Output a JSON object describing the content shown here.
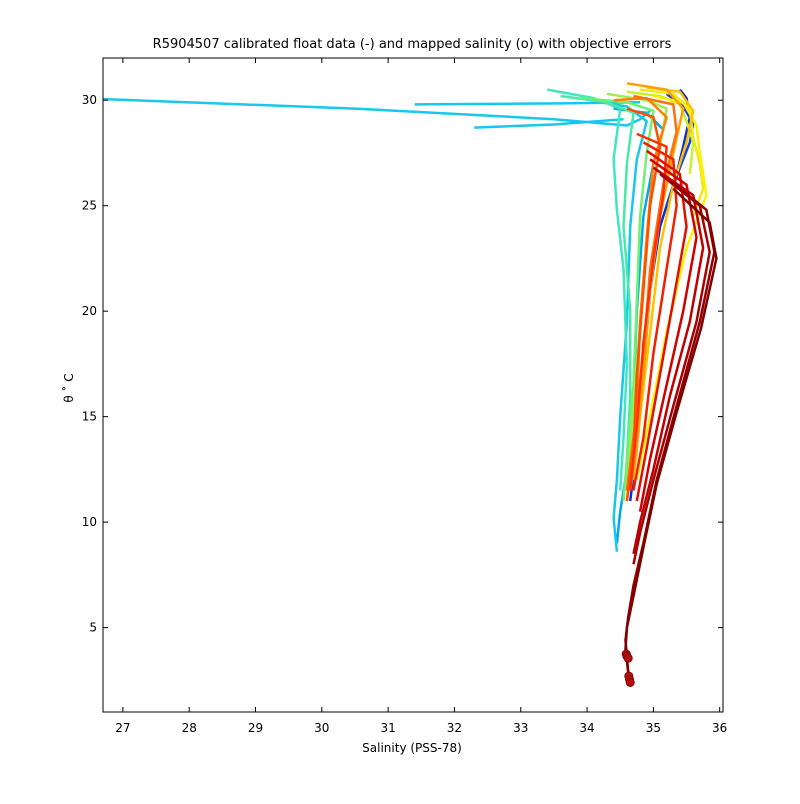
{
  "chart_data": {
    "type": "line",
    "title": "R5904507 calibrated float data (-) and mapped salinity (o) with objective errors",
    "xlabel": "Salinity (PSS-78)",
    "ylabel": "θ ˚ C",
    "xlim": [
      26.7,
      36.05
    ],
    "ylim": [
      1.0,
      32.0
    ],
    "xticks": [
      27,
      28,
      29,
      30,
      31,
      32,
      33,
      34,
      35,
      36
    ],
    "yticks": [
      5,
      10,
      15,
      20,
      25,
      30
    ],
    "grid": false,
    "legend": "none",
    "colormap": "jet",
    "series": [
      {
        "color": "#0a2fd0",
        "points": [
          [
            35.4,
            30.5
          ],
          [
            35.5,
            30.1
          ],
          [
            35.55,
            29.2
          ],
          [
            35.5,
            28.5
          ],
          [
            35.45,
            27.8
          ],
          [
            35.35,
            26.5
          ],
          [
            35.1,
            24.0
          ],
          [
            34.95,
            21.0
          ],
          [
            34.85,
            17.0
          ],
          [
            34.75,
            13.5
          ],
          [
            34.65,
            11.0
          ]
        ]
      },
      {
        "color": "#1540e6",
        "points": [
          [
            35.2,
            30.3
          ],
          [
            35.45,
            29.7
          ],
          [
            35.6,
            28.9
          ],
          [
            35.55,
            28.0
          ],
          [
            35.4,
            26.8
          ],
          [
            35.2,
            25.0
          ]
        ]
      },
      {
        "color": "#00a8f0",
        "points": [
          [
            34.4,
            29.6
          ],
          [
            34.9,
            29.4
          ],
          [
            35.15,
            28.6
          ],
          [
            35.0,
            27.0
          ],
          [
            34.85,
            24.5
          ],
          [
            34.75,
            20.0
          ],
          [
            34.7,
            16.0
          ],
          [
            34.6,
            12.5
          ],
          [
            34.5,
            10.5
          ],
          [
            34.45,
            9.0
          ]
        ]
      },
      {
        "color": "#18c8ec",
        "points": [
          [
            34.2,
            29.9
          ],
          [
            34.6,
            29.7
          ],
          [
            34.9,
            29.0
          ],
          [
            34.75,
            27.2
          ],
          [
            34.65,
            24.0
          ],
          [
            34.6,
            19.5
          ],
          [
            34.5,
            15.0
          ],
          [
            34.45,
            12.0
          ],
          [
            34.4,
            10.2
          ],
          [
            34.45,
            8.6
          ]
        ]
      },
      {
        "color": "#18c8ec",
        "points": [
          [
            26.7,
            30.05
          ],
          [
            30.5,
            29.6
          ],
          [
            33.5,
            29.1
          ],
          [
            34.6,
            28.8
          ],
          [
            34.8,
            29.1
          ],
          [
            34.95,
            29.5
          ]
        ]
      },
      {
        "color": "#18c8ec",
        "points": [
          [
            31.4,
            29.8
          ],
          [
            33.6,
            29.85
          ],
          [
            34.8,
            29.9
          ]
        ]
      },
      {
        "color": "#18c8ec",
        "points": [
          [
            32.3,
            28.7
          ],
          [
            33.5,
            28.85
          ],
          [
            34.55,
            29.1
          ]
        ]
      },
      {
        "color": "#40e6c0",
        "points": [
          [
            33.4,
            30.5
          ],
          [
            34.1,
            30.1
          ],
          [
            34.5,
            29.6
          ],
          [
            34.4,
            27.2
          ],
          [
            34.45,
            24.8
          ],
          [
            34.55,
            22.0
          ],
          [
            34.6,
            17.5
          ],
          [
            34.55,
            14.0
          ],
          [
            34.5,
            11.5
          ]
        ]
      },
      {
        "color": "#48e8a8",
        "points": [
          [
            33.6,
            30.2
          ],
          [
            34.3,
            29.9
          ],
          [
            34.7,
            29.4
          ],
          [
            34.6,
            27.0
          ],
          [
            34.55,
            24.0
          ],
          [
            34.65,
            20.0
          ],
          [
            34.65,
            16.0
          ],
          [
            34.6,
            13.0
          ]
        ]
      },
      {
        "color": "#70f070",
        "points": [
          [
            33.9,
            30.1
          ],
          [
            34.6,
            29.9
          ],
          [
            35.0,
            29.5
          ],
          [
            34.9,
            27.5
          ],
          [
            34.8,
            24.5
          ],
          [
            34.75,
            20.5
          ],
          [
            34.7,
            16.5
          ],
          [
            34.6,
            13.0
          ],
          [
            34.55,
            11.0
          ]
        ]
      },
      {
        "color": "#98f050",
        "points": [
          [
            34.3,
            30.3
          ],
          [
            34.9,
            30.0
          ],
          [
            35.2,
            29.6
          ],
          [
            35.1,
            27.8
          ],
          [
            34.95,
            25.0
          ],
          [
            34.85,
            21.5
          ],
          [
            34.75,
            17.5
          ],
          [
            34.65,
            13.5
          ],
          [
            34.6,
            11.5
          ]
        ]
      },
      {
        "color": "#c8f030",
        "points": [
          [
            34.6,
            30.4
          ],
          [
            35.1,
            30.2
          ],
          [
            35.4,
            29.8
          ],
          [
            35.5,
            29.0
          ],
          [
            35.6,
            28.0
          ],
          [
            35.55,
            26.5
          ]
        ]
      },
      {
        "color": "#f0e818",
        "points": [
          [
            34.8,
            30.5
          ],
          [
            35.3,
            30.3
          ],
          [
            35.55,
            29.6
          ],
          [
            35.6,
            28.2
          ],
          [
            35.7,
            27.0
          ],
          [
            35.75,
            25.8
          ],
          [
            35.6,
            24.5
          ]
        ]
      },
      {
        "color": "#fff000",
        "points": [
          [
            35.0,
            30.2
          ],
          [
            35.45,
            29.9
          ],
          [
            35.65,
            28.8
          ],
          [
            35.7,
            27.5
          ],
          [
            35.8,
            25.5
          ],
          [
            35.5,
            23.0
          ],
          [
            35.2,
            19.0
          ],
          [
            34.95,
            15.0
          ],
          [
            34.75,
            12.0
          ]
        ]
      },
      {
        "color": "#ffc000",
        "points": [
          [
            34.9,
            30.6
          ],
          [
            35.4,
            30.4
          ],
          [
            35.6,
            29.5
          ],
          [
            35.5,
            28.0
          ],
          [
            35.3,
            26.0
          ],
          [
            35.1,
            23.0
          ],
          [
            34.95,
            19.0
          ],
          [
            34.8,
            15.0
          ],
          [
            34.7,
            12.0
          ]
        ]
      },
      {
        "color": "#ffa000",
        "points": [
          [
            34.6,
            30.8
          ],
          [
            35.2,
            30.5
          ],
          [
            35.45,
            29.6
          ],
          [
            35.3,
            27.5
          ],
          [
            35.1,
            24.5
          ],
          [
            34.95,
            21.0
          ],
          [
            34.85,
            17.0
          ],
          [
            34.75,
            13.5
          ],
          [
            34.65,
            11.5
          ]
        ]
      },
      {
        "color": "#ff8000",
        "points": [
          [
            34.4,
            30.0
          ],
          [
            34.9,
            30.1
          ],
          [
            35.2,
            29.2
          ],
          [
            35.0,
            27.0
          ],
          [
            34.9,
            23.5
          ],
          [
            34.8,
            19.5
          ],
          [
            34.75,
            15.5
          ],
          [
            34.65,
            12.5
          ],
          [
            34.6,
            11.0
          ]
        ]
      },
      {
        "color": "#ff7010",
        "points": [
          [
            34.7,
            30.2
          ],
          [
            35.3,
            29.8
          ],
          [
            35.35,
            28.5
          ],
          [
            35.15,
            26.0
          ],
          [
            34.95,
            22.0
          ],
          [
            34.85,
            18.0
          ],
          [
            34.7,
            14.0
          ],
          [
            34.6,
            11.5
          ]
        ]
      },
      {
        "color": "#ff5000",
        "points": [
          [
            34.6,
            29.6
          ],
          [
            35.0,
            29.2
          ],
          [
            35.1,
            27.8
          ],
          [
            34.95,
            25.0
          ],
          [
            34.85,
            21.0
          ],
          [
            34.75,
            17.0
          ],
          [
            34.7,
            13.5
          ],
          [
            34.6,
            11.0
          ]
        ]
      },
      {
        "color": "#ff3000",
        "points": [
          [
            34.75,
            28.4
          ],
          [
            35.2,
            27.8
          ],
          [
            35.15,
            25.5
          ],
          [
            35.0,
            22.5
          ],
          [
            34.85,
            18.5
          ],
          [
            34.75,
            14.5
          ],
          [
            34.65,
            11.5
          ]
        ]
      },
      {
        "color": "#f02000",
        "points": [
          [
            34.85,
            28.0
          ],
          [
            35.3,
            27.2
          ],
          [
            35.35,
            25.0
          ],
          [
            35.2,
            22.0
          ],
          [
            35.0,
            18.0
          ],
          [
            34.85,
            14.0
          ],
          [
            34.7,
            11.5
          ]
        ]
      },
      {
        "color": "#e01000",
        "points": [
          [
            34.9,
            27.6
          ],
          [
            35.4,
            26.5
          ],
          [
            35.5,
            24.0
          ],
          [
            35.3,
            20.5
          ],
          [
            35.1,
            17.0
          ],
          [
            34.9,
            13.5
          ],
          [
            34.75,
            11.0
          ]
        ]
      },
      {
        "color": "#d00000",
        "points": [
          [
            34.95,
            27.2
          ],
          [
            35.5,
            26.0
          ],
          [
            35.65,
            23.5
          ],
          [
            35.45,
            20.0
          ],
          [
            35.2,
            16.5
          ],
          [
            34.95,
            13.0
          ],
          [
            34.8,
            10.5
          ]
        ]
      },
      {
        "color": "#c00000",
        "points": [
          [
            35.0,
            26.8
          ],
          [
            35.6,
            25.5
          ],
          [
            35.75,
            23.0
          ],
          [
            35.55,
            19.5
          ],
          [
            35.25,
            16.0
          ],
          [
            35.0,
            12.5
          ],
          [
            34.8,
            10.0
          ],
          [
            34.7,
            8.5
          ]
        ]
      },
      {
        "color": "#a80000",
        "points": [
          [
            35.1,
            26.5
          ],
          [
            35.7,
            25.0
          ],
          [
            35.85,
            22.8
          ],
          [
            35.65,
            19.5
          ],
          [
            35.3,
            15.5
          ],
          [
            35.0,
            12.0
          ],
          [
            34.8,
            9.5
          ],
          [
            34.7,
            8.0
          ]
        ]
      },
      {
        "color": "#900000",
        "points": [
          [
            35.25,
            26.2
          ],
          [
            35.8,
            24.8
          ],
          [
            35.92,
            22.8
          ],
          [
            35.7,
            19.5
          ],
          [
            35.35,
            15.5
          ],
          [
            35.05,
            12.0
          ],
          [
            34.85,
            9.0
          ],
          [
            34.7,
            7.0
          ],
          [
            34.62,
            5.5
          ],
          [
            34.58,
            4.4
          ],
          [
            34.6,
            3.6
          ],
          [
            34.63,
            2.6
          ]
        ]
      },
      {
        "color": "#800000",
        "points": [
          [
            35.3,
            25.8
          ],
          [
            35.85,
            24.2
          ],
          [
            35.95,
            22.5
          ],
          [
            35.72,
            19.2
          ],
          [
            35.35,
            15.2
          ],
          [
            35.05,
            11.8
          ],
          [
            34.85,
            8.8
          ],
          [
            34.7,
            6.5
          ],
          [
            34.6,
            5.0
          ],
          [
            34.58,
            4.0
          ],
          [
            34.6,
            3.4
          ],
          [
            34.64,
            2.4
          ]
        ]
      }
    ],
    "mapped_points": [
      [
        34.59,
        3.75
      ],
      [
        34.6,
        3.65
      ],
      [
        34.62,
        3.55
      ],
      [
        34.63,
        2.7
      ],
      [
        34.64,
        2.55
      ],
      [
        34.65,
        2.4
      ]
    ]
  }
}
